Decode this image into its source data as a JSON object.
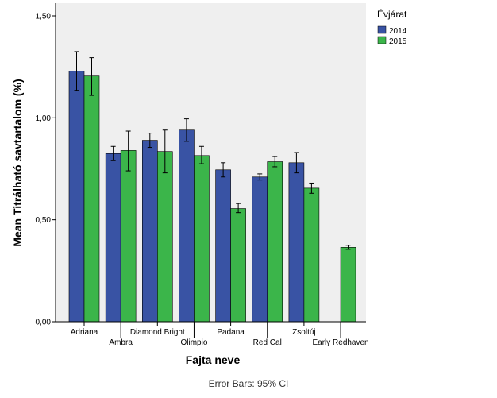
{
  "chart_data": {
    "type": "bar",
    "xlabel": "Fajta neve",
    "ylabel": "Mean Titrálható savtartalom (%)",
    "ylim": [
      0,
      1.5
    ],
    "yticks": [
      "0,00",
      "0,50",
      "1,00",
      "1,50"
    ],
    "ytick_values": [
      0,
      0.5,
      1.0,
      1.5
    ],
    "categories": [
      "Adriana",
      "Ambra",
      "Diamond Bright",
      "Olimpio",
      "Padana",
      "Red Cal",
      "Zsoltúj",
      "Early Redhaven"
    ],
    "legend_title": "Évjárat",
    "legend_position": "top-right",
    "footnote": "Error Bars: 95% CI",
    "grid": false,
    "series": [
      {
        "name": "2014",
        "color": "#3953a4",
        "values": [
          1.23,
          0.825,
          0.89,
          0.94,
          0.745,
          0.71,
          0.78,
          null
        ],
        "ci_low": [
          1.135,
          0.79,
          0.855,
          0.885,
          0.71,
          0.695,
          0.73,
          null
        ],
        "ci_high": [
          1.325,
          0.86,
          0.925,
          0.995,
          0.78,
          0.725,
          0.83,
          null
        ]
      },
      {
        "name": "2015",
        "color": "#3bb54a",
        "values": [
          1.205,
          0.84,
          0.835,
          0.815,
          0.555,
          0.785,
          0.655,
          0.365
        ],
        "ci_low": [
          1.11,
          0.74,
          0.73,
          0.775,
          0.535,
          0.76,
          0.63,
          0.355
        ],
        "ci_high": [
          1.295,
          0.935,
          0.94,
          0.86,
          0.58,
          0.81,
          0.68,
          0.375
        ]
      }
    ]
  }
}
